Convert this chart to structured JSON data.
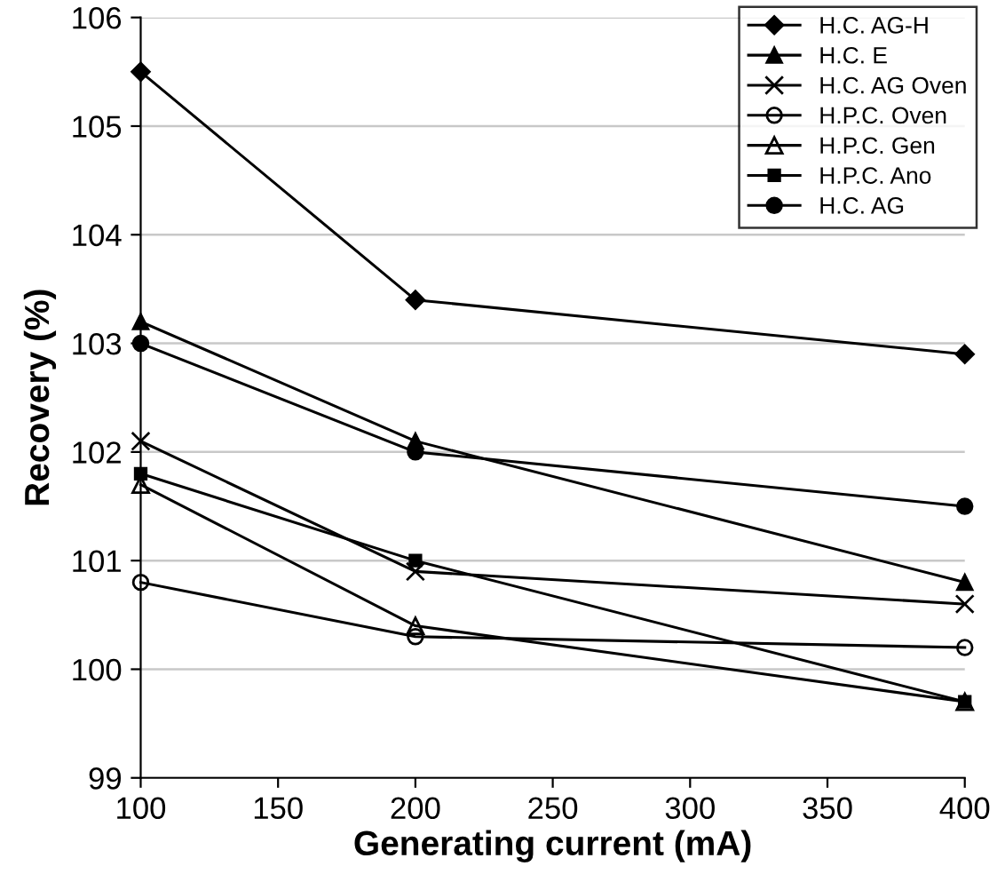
{
  "chart_data": {
    "type": "line",
    "xlabel": "Generating current (mA)",
    "ylabel": "Recovery (%)",
    "x": [
      100,
      200,
      400
    ],
    "series": [
      {
        "name": "H.C. AG-H",
        "color": "#000000",
        "marker": "diamond",
        "values": [
          105.5,
          103.4,
          102.9
        ]
      },
      {
        "name": "H.C. E",
        "color": "#000000",
        "marker": "triangle",
        "values": [
          103.2,
          102.1,
          100.8
        ]
      },
      {
        "name": "H.C. AG Oven",
        "color": "#000000",
        "marker": "cross",
        "values": [
          102.1,
          100.9,
          100.6
        ]
      },
      {
        "name": "H.P.C. Oven",
        "color": "#000000",
        "marker": "circle-open",
        "values": [
          100.8,
          100.3,
          100.2
        ]
      },
      {
        "name": "H.P.C. Gen",
        "color": "#000000",
        "marker": "triangle-open",
        "values": [
          101.7,
          100.4,
          99.7
        ]
      },
      {
        "name": "H.P.C. Ano",
        "color": "#000000",
        "marker": "square",
        "values": [
          101.8,
          101.0,
          99.7
        ]
      },
      {
        "name": "H.C. AG",
        "color": "#000000",
        "marker": "circle",
        "values": [
          103.0,
          102.0,
          101.5
        ]
      }
    ],
    "xlim": [
      100,
      400
    ],
    "xticks": [
      100,
      150,
      200,
      250,
      300,
      350,
      400
    ],
    "ylim": [
      99,
      106
    ],
    "yticks": [
      99,
      100,
      101,
      102,
      103,
      104,
      105,
      106
    ],
    "grid": "y",
    "legend": "top right",
    "line_style": "solid"
  }
}
